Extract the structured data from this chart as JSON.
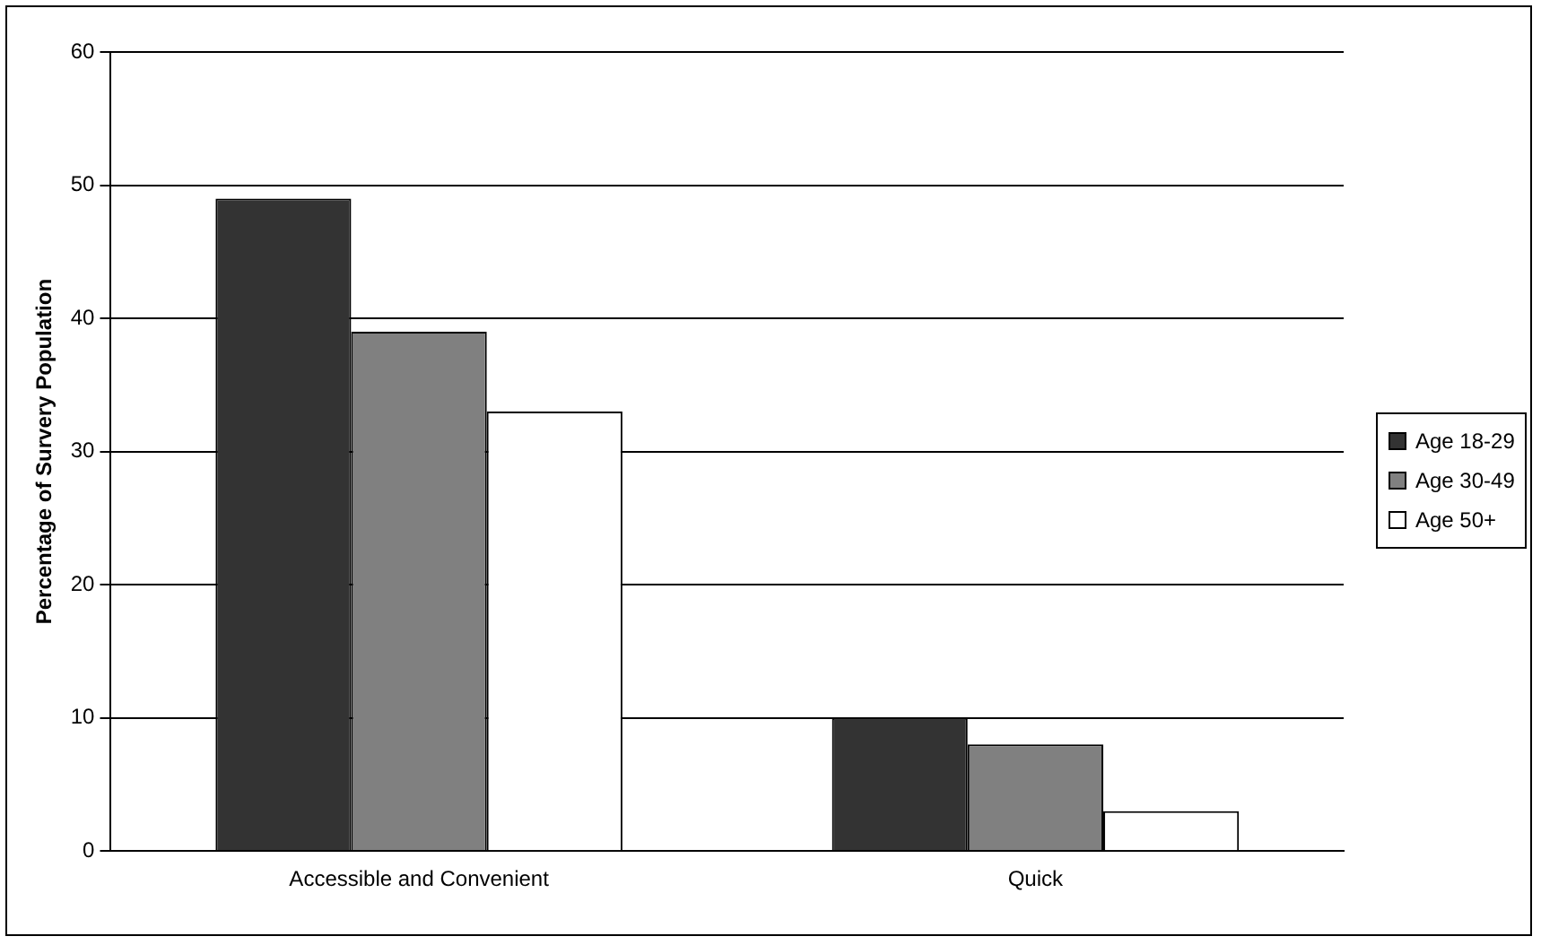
{
  "chart_data": {
    "type": "bar",
    "ylabel": "Percentage of Survery Population",
    "categories": [
      "Accessible and Convenient",
      "Quick"
    ],
    "series": [
      {
        "name": "Age 18-29",
        "color": "#333333",
        "values": [
          49,
          10
        ]
      },
      {
        "name": "Age 30-49",
        "color": "#808080",
        "values": [
          39,
          8
        ]
      },
      {
        "name": "Age 50+",
        "color": "#ffffff",
        "values": [
          33,
          3
        ]
      }
    ],
    "ylim": [
      0,
      60
    ],
    "yticks": [
      0,
      10,
      20,
      30,
      40,
      50,
      60
    ],
    "grid": "y",
    "legend": "right"
  }
}
